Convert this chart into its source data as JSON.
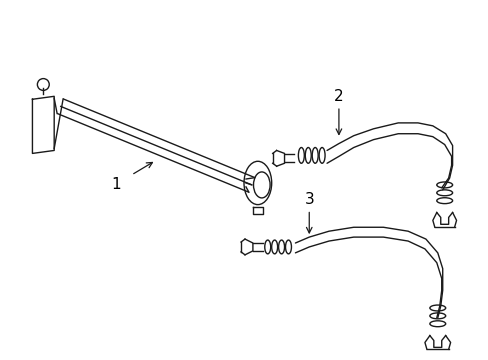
{
  "background_color": "#ffffff",
  "line_color": "#1a1a1a",
  "line_width": 1.0,
  "label_color": "#000000",
  "figsize": [
    4.89,
    3.6
  ],
  "dpi": 100,
  "xlim": [
    0,
    489
  ],
  "ylim": [
    0,
    360
  ]
}
